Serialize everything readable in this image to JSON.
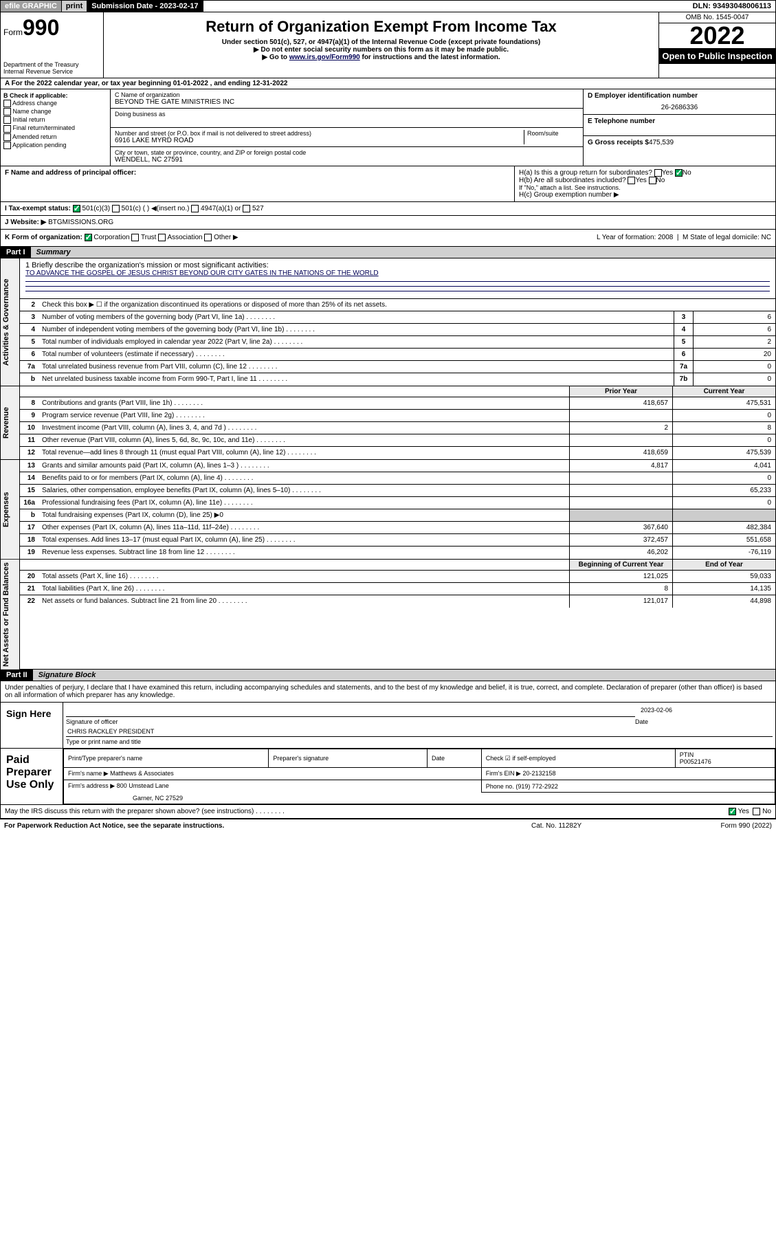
{
  "topbar": {
    "efile": "efile GRAPHIC",
    "print": "print",
    "subm_label": "Submission Date - ",
    "subm_date": "2023-02-17",
    "dln": "DLN: 93493048006113"
  },
  "header": {
    "form_prefix": "Form",
    "form_num": "990",
    "dept": "Department of the Treasury\nInternal Revenue Service",
    "title": "Return of Organization Exempt From Income Tax",
    "sub1": "Under section 501(c), 527, or 4947(a)(1) of the Internal Revenue Code (except private foundations)",
    "sub2": "▶ Do not enter social security numbers on this form as it may be made public.",
    "sub3_pre": "▶ Go to ",
    "sub3_link": "www.irs.gov/Form990",
    "sub3_post": " for instructions and the latest information.",
    "omb": "OMB No. 1545-0047",
    "year": "2022",
    "open": "Open to Public Inspection"
  },
  "a": "A For the 2022 calendar year, or tax year beginning 01-01-2022   , and ending 12-31-2022",
  "b": {
    "label": "B Check if applicable:",
    "opts": [
      "Address change",
      "Name change",
      "Initial return",
      "Final return/terminated",
      "Amended return",
      "Application pending"
    ]
  },
  "c": {
    "name_label": "C Name of organization",
    "name": "BEYOND THE GATE MINISTRIES INC",
    "dba_label": "Doing business as",
    "addr_label": "Number and street (or P.O. box if mail is not delivered to street address)",
    "room_label": "Room/suite",
    "addr": "6916 LAKE MYRD ROAD",
    "city_label": "City or town, state or province, country, and ZIP or foreign postal code",
    "city": "WENDELL, NC  27591"
  },
  "d": {
    "ein_label": "D Employer identification number",
    "ein": "26-2686336",
    "tel_label": "E Telephone number",
    "gross_label": "G Gross receipts $",
    "gross": "475,539"
  },
  "f": "F  Name and address of principal officer:",
  "h": {
    "a": "H(a)  Is this a group return for subordinates?",
    "b": "H(b)  Are all subordinates included?",
    "note": "If \"No,\" attach a list. See instructions.",
    "c": "H(c)  Group exemption number ▶"
  },
  "i": "I   Tax-exempt status:",
  "i_opts": [
    "501(c)(3)",
    "501(c) (  ) ◀(insert no.)",
    "4947(a)(1) or",
    "527"
  ],
  "j": "J   Website: ▶",
  "j_val": "BTGMISSIONS.ORG",
  "k": "K Form of organization:",
  "k_opts": [
    "Corporation",
    "Trust",
    "Association",
    "Other ▶"
  ],
  "l": "L Year of formation: 2008",
  "m": "M State of legal domicile: NC",
  "part1": {
    "num": "Part I",
    "title": "Summary"
  },
  "mission": {
    "label": "1   Briefly describe the organization's mission or most significant activities:",
    "text": "TO ADVANCE THE GOSPEL OF JESUS CHRIST BEYOND OUR CITY GATES IN THE NATIONS OF THE WORLD"
  },
  "gov_lines": [
    {
      "n": "2",
      "d": "Check this box ▶ ☐  if the organization discontinued its operations or disposed of more than 25% of its net assets."
    },
    {
      "n": "3",
      "d": "Number of voting members of the governing body (Part VI, line 1a)",
      "box": "3",
      "v": "6"
    },
    {
      "n": "4",
      "d": "Number of independent voting members of the governing body (Part VI, line 1b)",
      "box": "4",
      "v": "6"
    },
    {
      "n": "5",
      "d": "Total number of individuals employed in calendar year 2022 (Part V, line 2a)",
      "box": "5",
      "v": "2"
    },
    {
      "n": "6",
      "d": "Total number of volunteers (estimate if necessary)",
      "box": "6",
      "v": "20"
    },
    {
      "n": "7a",
      "d": "Total unrelated business revenue from Part VIII, column (C), line 12",
      "box": "7a",
      "v": "0"
    },
    {
      "n": "b",
      "d": "Net unrelated business taxable income from Form 990-T, Part I, line 11",
      "box": "7b",
      "v": "0"
    }
  ],
  "col_headers": {
    "prior": "Prior Year",
    "current": "Current Year"
  },
  "rev_lines": [
    {
      "n": "8",
      "d": "Contributions and grants (Part VIII, line 1h)",
      "p": "418,657",
      "c": "475,531"
    },
    {
      "n": "9",
      "d": "Program service revenue (Part VIII, line 2g)",
      "p": "",
      "c": "0"
    },
    {
      "n": "10",
      "d": "Investment income (Part VIII, column (A), lines 3, 4, and 7d )",
      "p": "2",
      "c": "8"
    },
    {
      "n": "11",
      "d": "Other revenue (Part VIII, column (A), lines 5, 6d, 8c, 9c, 10c, and 11e)",
      "p": "",
      "c": "0"
    },
    {
      "n": "12",
      "d": "Total revenue—add lines 8 through 11 (must equal Part VIII, column (A), line 12)",
      "p": "418,659",
      "c": "475,539"
    }
  ],
  "exp_lines": [
    {
      "n": "13",
      "d": "Grants and similar amounts paid (Part IX, column (A), lines 1–3 )",
      "p": "4,817",
      "c": "4,041"
    },
    {
      "n": "14",
      "d": "Benefits paid to or for members (Part IX, column (A), line 4)",
      "p": "",
      "c": "0"
    },
    {
      "n": "15",
      "d": "Salaries, other compensation, employee benefits (Part IX, column (A), lines 5–10)",
      "p": "",
      "c": "65,233"
    },
    {
      "n": "16a",
      "d": "Professional fundraising fees (Part IX, column (A), line 11e)",
      "p": "",
      "c": "0"
    },
    {
      "n": "b",
      "d": "Total fundraising expenses (Part IX, column (D), line 25) ▶0",
      "p": null,
      "c": null
    },
    {
      "n": "17",
      "d": "Other expenses (Part IX, column (A), lines 11a–11d, 11f–24e)",
      "p": "367,640",
      "c": "482,384"
    },
    {
      "n": "18",
      "d": "Total expenses. Add lines 13–17 (must equal Part IX, column (A), line 25)",
      "p": "372,457",
      "c": "551,658"
    },
    {
      "n": "19",
      "d": "Revenue less expenses. Subtract line 18 from line 12",
      "p": "46,202",
      "c": "-76,119"
    }
  ],
  "net_headers": {
    "begin": "Beginning of Current Year",
    "end": "End of Year"
  },
  "net_lines": [
    {
      "n": "20",
      "d": "Total assets (Part X, line 16)",
      "p": "121,025",
      "c": "59,033"
    },
    {
      "n": "21",
      "d": "Total liabilities (Part X, line 26)",
      "p": "8",
      "c": "14,135"
    },
    {
      "n": "22",
      "d": "Net assets or fund balances. Subtract line 21 from line 20",
      "p": "121,017",
      "c": "44,898"
    }
  ],
  "part2": {
    "num": "Part II",
    "title": "Signature Block"
  },
  "perjury": "Under penalties of perjury, I declare that I have examined this return, including accompanying schedules and statements, and to the best of my knowledge and belief, it is true, correct, and complete. Declaration of preparer (other than officer) is based on all information of which preparer has any knowledge.",
  "sign": {
    "label": "Sign Here",
    "sig_of": "Signature of officer",
    "date": "2023-02-06",
    "date_label": "Date",
    "name": "CHRIS RACKLEY PRESIDENT",
    "name_label": "Type or print name and title"
  },
  "prep": {
    "label": "Paid Preparer Use Only",
    "h1": "Print/Type preparer's name",
    "h2": "Preparer's signature",
    "h3": "Date",
    "h4": "Check ☑ if self-employed",
    "h5": "PTIN",
    "ptin": "P00521476",
    "firm_name_label": "Firm's name   ▶",
    "firm_name": "Matthews & Associates",
    "firm_ein_label": "Firm's EIN ▶",
    "firm_ein": "20-2132158",
    "firm_addr_label": "Firm's address ▶",
    "firm_addr": "800 Umstead Lane",
    "firm_city": "Garner, NC  27529",
    "phone_label": "Phone no.",
    "phone": "(919) 772-2922"
  },
  "discuss": "May the IRS discuss this return with the preparer shown above? (see instructions)",
  "footer": {
    "f1": "For Paperwork Reduction Act Notice, see the separate instructions.",
    "f2": "Cat. No. 11282Y",
    "f3": "Form 990 (2022)"
  },
  "tabs": {
    "gov": "Activities & Governance",
    "rev": "Revenue",
    "exp": "Expenses",
    "net": "Net Assets or Fund Balances"
  }
}
